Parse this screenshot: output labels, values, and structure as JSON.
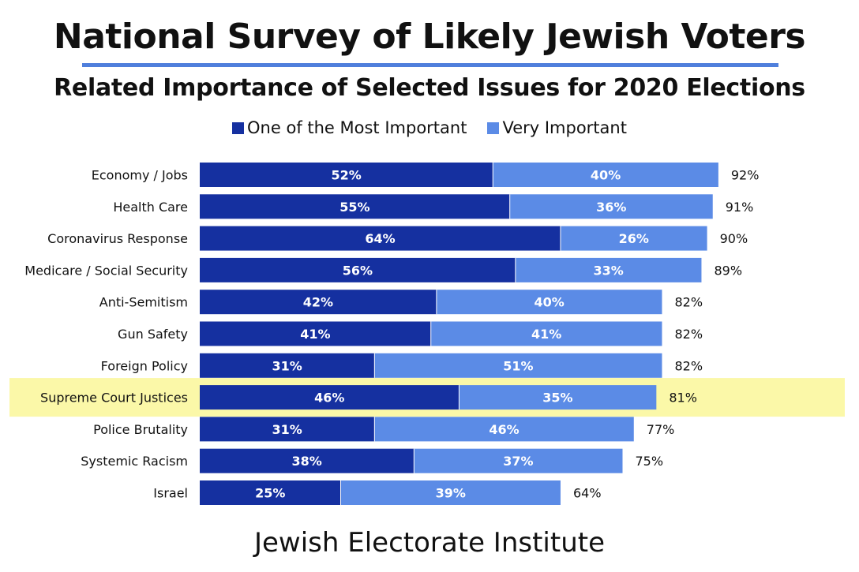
{
  "header": {
    "title": "National Survey of Likely Jewish Voters",
    "subtitle": "Related Importance of Selected Issues for 2020 Elections"
  },
  "footer": {
    "source": "Jewish Electorate Institute"
  },
  "colors": {
    "most_important": "#1530a0",
    "very_important": "#5b8be6",
    "highlight": "#fbf8a8",
    "title_rule": "#4f7fdc"
  },
  "chart_data": {
    "type": "bar",
    "orientation": "horizontal",
    "stacked": true,
    "title": "National Survey of Likely Jewish Voters",
    "subtitle": "Related Importance of Selected Issues for 2020 Elections",
    "legend_position": "top-center",
    "grid": false,
    "xlim": [
      0,
      100
    ],
    "categories": [
      "Economy / Jobs",
      "Health Care",
      "Coronavirus Response",
      "Medicare / Social Security",
      "Anti-Semitism",
      "Gun Safety",
      "Foreign Policy",
      "Supreme Court Justices",
      "Police Brutality",
      "Systemic Racism",
      "Israel"
    ],
    "series": [
      {
        "name": "One of the Most Important",
        "values": [
          52,
          55,
          64,
          56,
          42,
          41,
          31,
          46,
          31,
          38,
          25
        ]
      },
      {
        "name": "Very Important",
        "values": [
          40,
          36,
          26,
          33,
          40,
          41,
          51,
          35,
          46,
          37,
          39
        ]
      }
    ],
    "totals": [
      92,
      91,
      90,
      89,
      82,
      82,
      82,
      81,
      77,
      75,
      64
    ],
    "highlighted_category": "Supreme Court Justices",
    "value_suffix": "%"
  }
}
